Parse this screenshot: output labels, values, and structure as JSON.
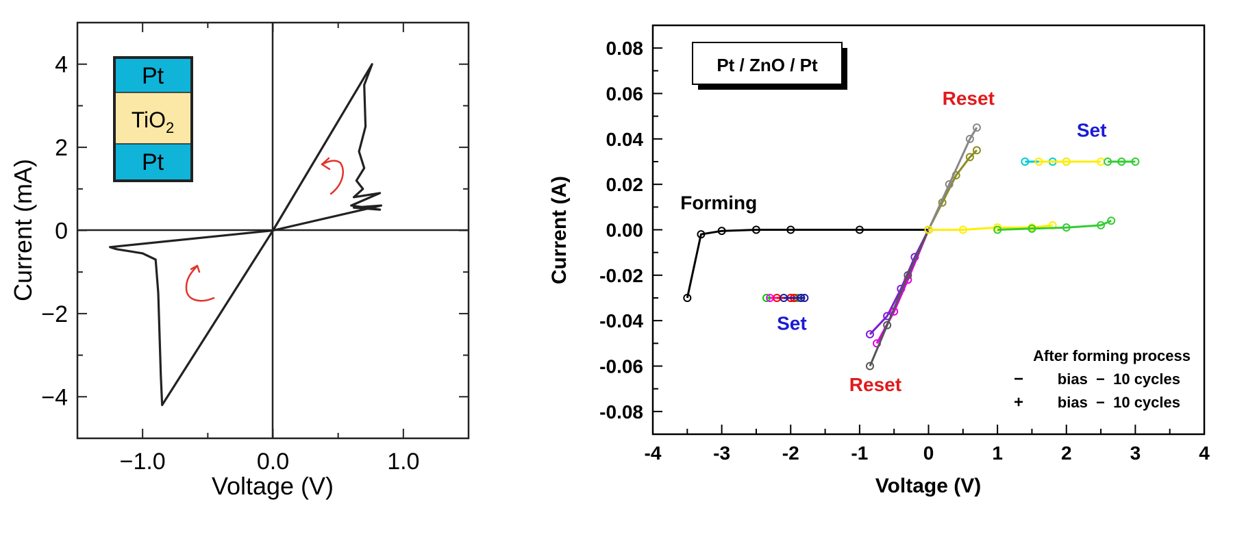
{
  "chart_data": [
    {
      "type": "line",
      "xlabel": "Voltage (V)",
      "ylabel": "Current (mA)",
      "xlim": [
        -1.5,
        1.5
      ],
      "ylim": [
        -5,
        5
      ],
      "x_ticks": [
        -1.0,
        0.0,
        1.0
      ],
      "x_tick_labels": [
        "−1.0",
        "0.0",
        "1.0"
      ],
      "y_ticks": [
        -4,
        -2,
        0,
        2,
        4
      ],
      "y_tick_labels": [
        "−4",
        "−2",
        "0",
        "2",
        "4"
      ],
      "grid": false,
      "inset_stack": {
        "layers": [
          {
            "label": "Pt",
            "color": "#0fb4d8"
          },
          {
            "label_main": "TiO",
            "label_sub": "2",
            "color": "#fbe8a6"
          },
          {
            "label": "Pt",
            "color": "#0fb4d8"
          }
        ]
      },
      "series": [
        {
          "color": "#222222",
          "x": [
            0,
            0.76,
            0.7,
            0.71,
            0.66,
            0.7,
            0.64,
            0.69,
            0.62,
            0.82,
            0.6,
            0.82,
            0.62,
            0.83,
            0,
            -1.25,
            -1.2,
            -1.1,
            -1.0,
            -0.9,
            -0.88,
            -0.86,
            -0.85,
            0
          ],
          "y": [
            0,
            4.0,
            3.5,
            2.5,
            1.9,
            1.5,
            1.2,
            1.0,
            0.8,
            0.9,
            0.6,
            0.5,
            0.55,
            0.6,
            0,
            -0.4,
            -0.45,
            -0.5,
            -0.55,
            -0.7,
            -1.5,
            -3.5,
            -4.2,
            0
          ]
        }
      ],
      "annotations": [
        {
          "type": "arrow",
          "color": "#e2342b",
          "at_x": 0.45,
          "at_y": 1.8
        },
        {
          "type": "arrow",
          "color": "#e2342b",
          "at_x": -0.62,
          "at_y": -1.4
        }
      ]
    },
    {
      "type": "scatter",
      "title": "Pt / ZnO / Pt",
      "xlabel": "Voltage (V)",
      "ylabel": "Current (A)",
      "xlim": [
        -4,
        4
      ],
      "ylim": [
        -0.09,
        0.09
      ],
      "x_ticks": [
        -4,
        -3,
        -2,
        -1,
        0,
        1,
        2,
        3,
        4
      ],
      "y_ticks": [
        -0.08,
        -0.06,
        -0.04,
        -0.02,
        0.0,
        0.02,
        0.04,
        0.06,
        0.08
      ],
      "y_tick_labels": [
        "-0.08",
        "-0.06",
        "-0.04",
        "-0.02",
        "0.00",
        "0.02",
        "0.04",
        "0.06",
        "0.08"
      ],
      "grid": false,
      "labels": [
        {
          "text": "Forming",
          "color": "#000000",
          "x": -3.6,
          "y": 0.009
        },
        {
          "text": "Reset",
          "color": "#e2191b",
          "x": 0.2,
          "y": 0.055
        },
        {
          "text": "Set",
          "color": "#1b1bd6",
          "x": 2.15,
          "y": 0.041
        },
        {
          "text": "Set",
          "color": "#1b1bd6",
          "x": -2.2,
          "y": -0.044
        },
        {
          "text": "Reset",
          "color": "#e2191b",
          "x": -1.15,
          "y": -0.071
        }
      ],
      "legend_box": {
        "placement": "bottom-right",
        "title": "After forming process",
        "lines": [
          {
            "symbol": "−",
            "text": "bias  −  10 cycles"
          },
          {
            "symbol": "+",
            "text": "bias  −  10 cycles"
          }
        ]
      },
      "series": [
        {
          "color": "#000000",
          "x": [
            -3.5,
            -3.3,
            -3.0,
            -2.5,
            -2.0,
            -1.0,
            0.0
          ],
          "y": [
            -0.03,
            -0.002,
            -0.0005,
            0.0,
            0.0,
            0.0,
            0.0
          ]
        },
        {
          "color": "#00cc00",
          "x": [
            -2.35,
            -2.0,
            -1.9
          ],
          "y": [
            -0.03,
            -0.03,
            -0.03
          ]
        },
        {
          "color": "#ff00ff",
          "x": [
            -2.3,
            -1.95,
            -1.85
          ],
          "y": [
            -0.03,
            -0.03,
            -0.03
          ]
        },
        {
          "color": "#ff0000",
          "x": [
            -2.2,
            -2.0,
            -1.95
          ],
          "y": [
            -0.03,
            -0.03,
            -0.03
          ]
        },
        {
          "color": "#1c1ca0",
          "x": [
            -2.1,
            -1.85,
            -1.8
          ],
          "y": [
            -0.03,
            -0.03,
            -0.03
          ]
        },
        {
          "color": "#7c1cd6",
          "x": [
            -0.85,
            -0.6,
            -0.4,
            -0.2,
            0.0
          ],
          "y": [
            -0.046,
            -0.038,
            -0.026,
            -0.012,
            0.0
          ]
        },
        {
          "color": "#e000e0",
          "x": [
            -0.75,
            -0.5,
            -0.3,
            0.0
          ],
          "y": [
            -0.05,
            -0.036,
            -0.022,
            0.0
          ]
        },
        {
          "color": "#555555",
          "x": [
            -0.85,
            -0.6,
            -0.3,
            0.0
          ],
          "y": [
            -0.06,
            -0.042,
            -0.02,
            0.0
          ]
        },
        {
          "color": "#8b8b20",
          "x": [
            0.0,
            0.2,
            0.4,
            0.6,
            0.7
          ],
          "y": [
            0.0,
            0.012,
            0.024,
            0.032,
            0.035
          ]
        },
        {
          "color": "#888888",
          "x": [
            0.0,
            0.3,
            0.6,
            0.7
          ],
          "y": [
            0.0,
            0.02,
            0.04,
            0.045
          ]
        },
        {
          "color": "#00cccc",
          "x": [
            1.4,
            1.8,
            2.0
          ],
          "y": [
            0.03,
            0.03,
            0.03
          ]
        },
        {
          "color": "#ffee00",
          "x": [
            1.6,
            2.0,
            2.5
          ],
          "y": [
            0.03,
            0.03,
            0.03
          ]
        },
        {
          "color": "#33cc33",
          "x": [
            2.6,
            2.8,
            3.0
          ],
          "y": [
            0.03,
            0.03,
            0.03
          ]
        },
        {
          "color": "#ffee00",
          "x": [
            0.0,
            0.5,
            1.0,
            1.5,
            1.8
          ],
          "y": [
            0.0,
            0.0,
            0.001,
            0.001,
            0.002
          ]
        },
        {
          "color": "#33cc33",
          "x": [
            1.0,
            1.5,
            2.0,
            2.5,
            2.65
          ],
          "y": [
            0.0,
            0.0005,
            0.001,
            0.002,
            0.004
          ]
        }
      ]
    }
  ]
}
